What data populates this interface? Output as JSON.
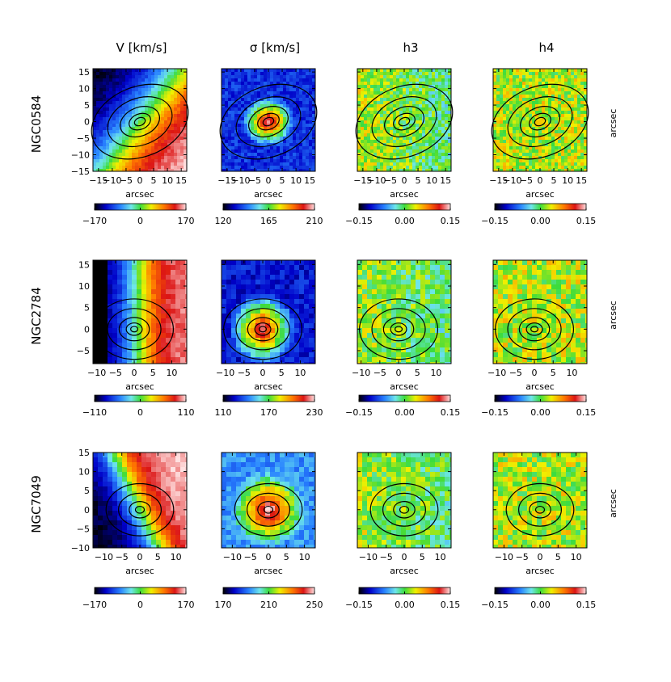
{
  "chart_data": {
    "type": "heatmap",
    "column_titles": [
      "V [km/s]",
      "σ [km/s]",
      "h3",
      "h4"
    ],
    "side_label": "arcsec",
    "rows": [
      {
        "galaxy": "NGC0584",
        "x_label": "arcsec",
        "x_ticks": [
          "−15",
          "−10",
          "−5",
          "0",
          "5",
          "10",
          "15"
        ],
        "y_ticks": [
          "15",
          "10",
          "5",
          "0",
          "−5",
          "−10",
          "−15"
        ],
        "xlim": [
          -17,
          17
        ],
        "ylim": [
          -15,
          16
        ],
        "colorbars": [
          {
            "min": -170,
            "mid": 0,
            "max": 170,
            "labels": [
              "−170",
              "0",
              "170"
            ]
          },
          {
            "min": 120,
            "mid": 165,
            "max": 210,
            "labels": [
              "120",
              "165",
              "210"
            ]
          },
          {
            "min": -0.15,
            "mid": 0.0,
            "max": 0.15,
            "labels": [
              "−0.15",
              "0.00",
              "0.15"
            ]
          },
          {
            "min": -0.15,
            "mid": 0.0,
            "max": 0.15,
            "labels": [
              "−0.15",
              "0.00",
              "0.15"
            ]
          }
        ]
      },
      {
        "galaxy": "NGC2784",
        "x_label": "arcsec",
        "x_ticks": [
          "−10",
          "−5",
          "0",
          "5",
          "10"
        ],
        "y_ticks": [
          "15",
          "10",
          "5",
          "0",
          "−5"
        ],
        "xlim": [
          -11,
          14
        ],
        "ylim": [
          -8,
          16
        ],
        "colorbars": [
          {
            "min": -110,
            "mid": 0,
            "max": 110,
            "labels": [
              "−110",
              "0",
              "110"
            ]
          },
          {
            "min": 110,
            "mid": 170,
            "max": 230,
            "labels": [
              "110",
              "170",
              "230"
            ]
          },
          {
            "min": -0.15,
            "mid": 0.0,
            "max": 0.15,
            "labels": [
              "−0.15",
              "0.00",
              "0.15"
            ]
          },
          {
            "min": -0.15,
            "mid": 0.0,
            "max": 0.15,
            "labels": [
              "−0.15",
              "0.00",
              "0.15"
            ]
          }
        ]
      },
      {
        "galaxy": "NGC7049",
        "x_label": "arcsec",
        "x_ticks": [
          "−10",
          "−5",
          "0",
          "5",
          "10"
        ],
        "y_ticks": [
          "15",
          "10",
          "5",
          "0",
          "−5",
          "−10"
        ],
        "xlim": [
          -13,
          13
        ],
        "ylim": [
          -10,
          15
        ],
        "colorbars": [
          {
            "min": -170,
            "mid": 0,
            "max": 170,
            "labels": [
              "−170",
              "0",
              "170"
            ]
          },
          {
            "min": 170,
            "mid": 210,
            "max": 250,
            "labels": [
              "170",
              "210",
              "250"
            ]
          },
          {
            "min": -0.15,
            "mid": 0.0,
            "max": 0.15,
            "labels": [
              "−0.15",
              "0.00",
              "0.15"
            ]
          },
          {
            "min": -0.15,
            "mid": 0.0,
            "max": 0.15,
            "labels": [
              "−0.15",
              "0.00",
              "0.15"
            ]
          }
        ]
      }
    ]
  }
}
